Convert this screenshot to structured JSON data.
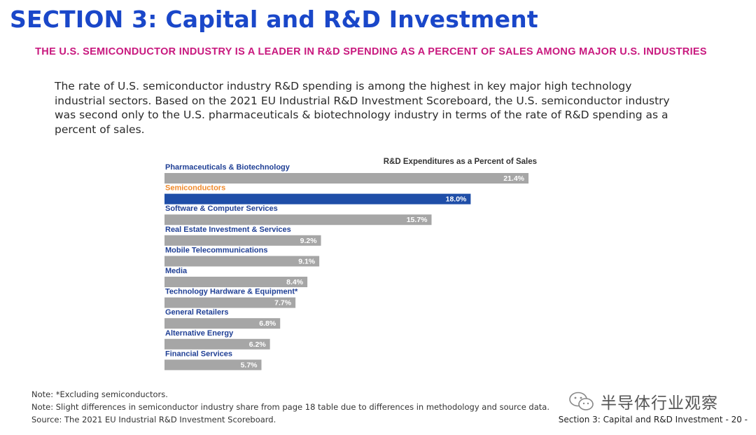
{
  "header": {
    "section_title": "SECTION 3: Capital and R&D Investment",
    "subtitle": "THE U.S. SEMICONDUCTOR INDUSTRY IS A LEADER IN R&D SPENDING AS A PERCENT OF SALES AMONG MAJOR U.S. INDUSTRIES"
  },
  "body": {
    "paragraph": "The rate of U.S. semiconductor industry R&D spending is among the highest in key major high technology industrial sectors. Based on the 2021 EU Industrial R&D Investment Scoreboard, the U.S. semiconductor industry was second only to the U.S. pharmaceuticals & biotechnology industry in terms of the rate of R&D spending as a percent of sales."
  },
  "chart_data": {
    "type": "bar",
    "orientation": "horizontal",
    "title": "R&D Expenditures as a Percent of Sales",
    "categories": [
      "Pharmaceuticals & Biotechnology",
      "Semiconductors",
      "Software & Computer Services",
      "Real Estate Investment & Services",
      "Mobile Telecommunications",
      "Media",
      "Technology Hardware & Equipment*",
      "General Retailers",
      "Alternative Energy",
      "Financial Services"
    ],
    "values": [
      21.4,
      18.0,
      15.7,
      9.2,
      9.1,
      8.4,
      7.7,
      6.8,
      6.2,
      5.7
    ],
    "data_labels": [
      "21.4%",
      "18.0%",
      "15.7%",
      "9.2%",
      "9.1%",
      "8.4%",
      "7.7%",
      "6.8%",
      "6.2%",
      "5.7%"
    ],
    "highlight_category": "Semiconductors",
    "colors": {
      "bar_default": "#a6a6a6",
      "bar_highlight": "#1f4ea8",
      "label_default": "#1f3f95",
      "label_highlight": "#f08a2c",
      "value_text": "#ffffff"
    },
    "grid": false,
    "legend": "none"
  },
  "notes": [
    "Note: *Excluding semiconductors.",
    "Note: Slight differences in semiconductor industry share from page 18 table due to differences in methodology and source data.",
    "Source: The 2021 EU Industrial R&D Investment Scoreboard."
  ],
  "watermark": {
    "icon": "wechat-icon",
    "text": "半导体行业观察"
  },
  "footer": {
    "page_label": "Section 3: Capital and R&D Investment  - 20 -"
  }
}
